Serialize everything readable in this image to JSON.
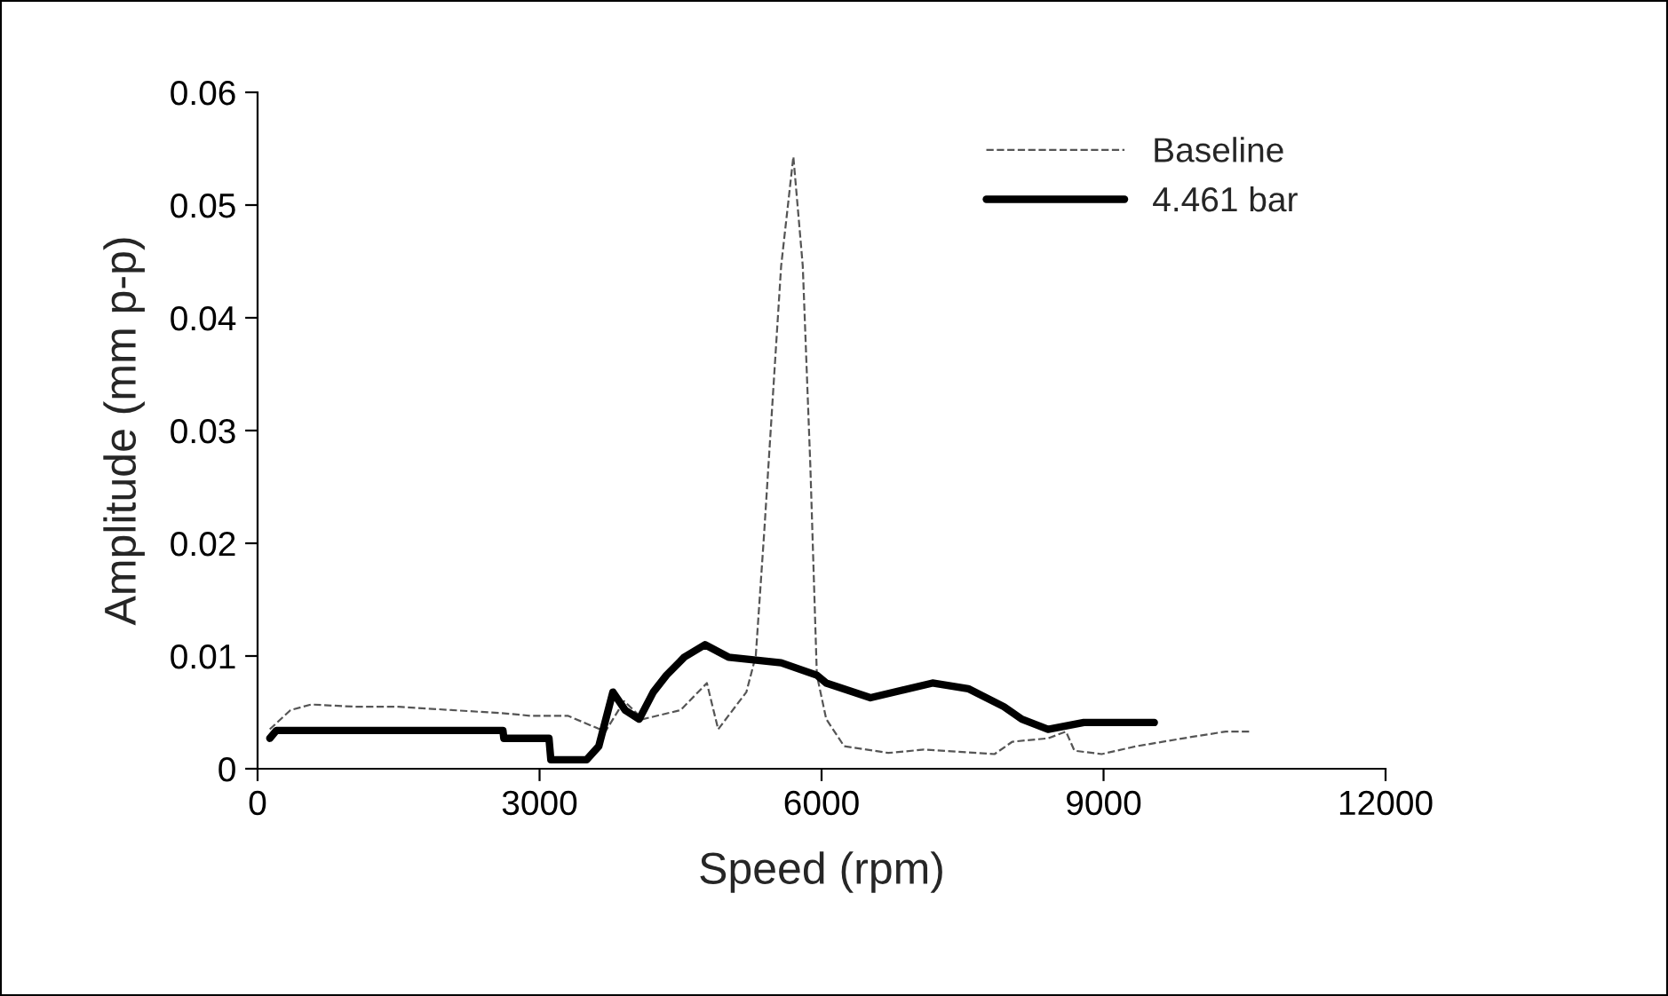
{
  "chart_data": {
    "type": "line",
    "xlabel": "Speed (rpm)",
    "ylabel": "Amplitude (mm p-p)",
    "xlim": [
      0,
      12000
    ],
    "xticks": [
      0,
      3000,
      6000,
      9000,
      12000
    ],
    "ylim": [
      0,
      0.06
    ],
    "yticks": [
      {
        "value": 0,
        "label": "0"
      },
      {
        "value": 0.01,
        "label": "0.01"
      },
      {
        "value": 0.02,
        "label": "0.02"
      },
      {
        "value": 0.03,
        "label": "0.03"
      },
      {
        "value": 0.04,
        "label": "0.04"
      },
      {
        "value": 0.05,
        "label": "0.05"
      },
      {
        "value": 0.06,
        "label": "0.06"
      }
    ],
    "grid": false,
    "legend": "top right",
    "marker": "none",
    "series": [
      {
        "name": "Baseline",
        "color": "#555555",
        "line_style": "dashed",
        "x": [
          130,
          350,
          570,
          1040,
          1500,
          2650,
          2900,
          3300,
          3500,
          3700,
          3900,
          4100,
          4500,
          4780,
          4900,
          5200,
          5300,
          5390,
          5570,
          5700,
          5800,
          5880,
          5950,
          6050,
          6240,
          6710,
          7090,
          7840,
          8030,
          8410,
          8600,
          8690,
          8980,
          9350,
          9920,
          10300,
          10580
        ],
        "values": [
          0.0035,
          0.0052,
          0.0057,
          0.0055,
          0.0055,
          0.0049,
          0.0047,
          0.0047,
          0.004,
          0.0033,
          0.006,
          0.0044,
          0.0052,
          0.0076,
          0.0035,
          0.0068,
          0.01,
          0.021,
          0.0446,
          0.0543,
          0.0446,
          0.027,
          0.0083,
          0.0044,
          0.002,
          0.0014,
          0.0017,
          0.0013,
          0.0024,
          0.0027,
          0.0033,
          0.0016,
          0.0013,
          0.002,
          0.0028,
          0.0033,
          0.0033
        ]
      },
      {
        "name": "4.461 bar",
        "color": "#000000",
        "line_style": "solid",
        "x": [
          130,
          200,
          1500,
          2610,
          2620,
          3100,
          3120,
          3500,
          3630,
          3780,
          3910,
          4060,
          4210,
          4350,
          4540,
          4760,
          5010,
          5570,
          5950,
          6050,
          6520,
          7180,
          7560,
          7940,
          8130,
          8410,
          8790,
          9540
        ],
        "values": [
          0.0027,
          0.0034,
          0.0034,
          0.0034,
          0.0027,
          0.0027,
          0.0008,
          0.0008,
          0.002,
          0.0068,
          0.0052,
          0.0044,
          0.0068,
          0.0083,
          0.0099,
          0.011,
          0.0099,
          0.0094,
          0.0083,
          0.0076,
          0.0063,
          0.0076,
          0.0071,
          0.0055,
          0.0044,
          0.0035,
          0.0041,
          0.0041
        ]
      }
    ]
  }
}
